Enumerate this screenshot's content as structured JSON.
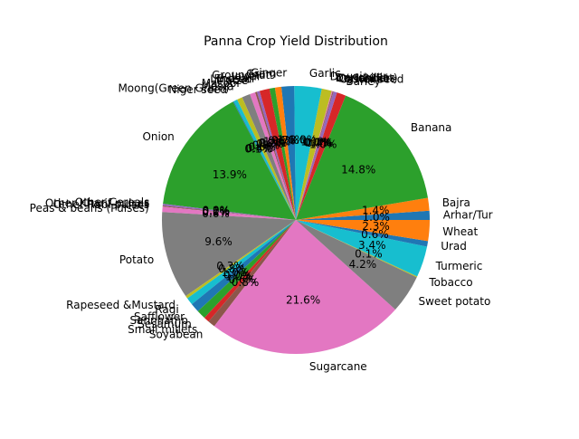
{
  "chart_data": {
    "type": "pie",
    "title": "Panna Crop Yield Distribution",
    "start_angle_deg": 0,
    "direction": "counterclockwise",
    "slices": [
      {
        "label": "Arhar/Tur",
        "value": 1.0,
        "pct": "1.0%",
        "color": "#1f77b4"
      },
      {
        "label": "Bajra",
        "value": 1.4,
        "pct": "1.4%",
        "color": "#ff7f0e"
      },
      {
        "label": "Banana",
        "value": 14.8,
        "pct": "14.8%",
        "color": "#2ca02c"
      },
      {
        "label": "Barley",
        "value": 1.0,
        "pct": "1.0%",
        "color": "#d62728"
      },
      {
        "label": "Castor seed",
        "value": 0.4,
        "pct": "0.4%",
        "color": "#9467bd"
      },
      {
        "label": "Coriander",
        "value": 0.1,
        "pct": "0.1%",
        "color": "#8c564b"
      },
      {
        "label": "Cotton(lint)",
        "value": 0.1,
        "pct": "0.1%",
        "color": "#e377c2"
      },
      {
        "label": "Dry chillies",
        "value": 0.0,
        "pct": "0.0%",
        "color": "#7f7f7f"
      },
      {
        "label": "Dry ginger",
        "value": 1.1,
        "pct": "1.1%",
        "color": "#bcbd22"
      },
      {
        "label": "Garlic",
        "value": 3.0,
        "pct": "3.0%",
        "color": "#17becf"
      },
      {
        "label": "Ginger",
        "value": 1.4,
        "pct": "1.4%",
        "color": "#1f77b4"
      },
      {
        "label": "Gram",
        "value": 0.7,
        "pct": "0.7%",
        "color": "#ff7f0e"
      },
      {
        "label": "Groundnut",
        "value": 0.6,
        "pct": "0.6%",
        "color": "#2ca02c"
      },
      {
        "label": "Jowar",
        "value": 1.1,
        "pct": "1.1%",
        "color": "#d62728"
      },
      {
        "label": "Khesari",
        "value": 0.3,
        "pct": "0.3%",
        "color": "#9467bd"
      },
      {
        "label": "Linseed",
        "value": 0.2,
        "pct": "0.2%",
        "color": "#8c564b"
      },
      {
        "label": "Maize",
        "value": 0.6,
        "pct": "0.6%",
        "color": "#e377c2"
      },
      {
        "label": "Masoor",
        "value": 0.9,
        "pct": "0.9%",
        "color": "#7f7f7f"
      },
      {
        "label": "Mesta",
        "value": 0.6,
        "pct": "0.6%",
        "color": "#bcbd22"
      },
      {
        "label": "Moong(Green Gram)",
        "value": 0.4,
        "pct": "0.4%",
        "color": "#17becf"
      },
      {
        "label": "Niger seed",
        "value": 0.1,
        "pct": "0.1%",
        "color": "#1f77b4"
      },
      {
        "label": "Onion",
        "value": 13.9,
        "pct": "13.9%",
        "color": "#2ca02c"
      },
      {
        "label": "Other Cereals",
        "value": 0.0,
        "pct": "0.0%",
        "color": "#d62728"
      },
      {
        "label": "Other Kharif pulses",
        "value": 0.2,
        "pct": "0.2%",
        "color": "#9467bd"
      },
      {
        "label": "Other Rabi pulses",
        "value": 0.1,
        "pct": "0.1%",
        "color": "#8c564b"
      },
      {
        "label": "Peas & beans (Pulses)",
        "value": 0.6,
        "pct": "0.6%",
        "color": "#e377c2"
      },
      {
        "label": "Potato",
        "value": 9.6,
        "pct": "9.6%",
        "color": "#7f7f7f"
      },
      {
        "label": "Rapeseed &Mustard",
        "value": 0.3,
        "pct": "0.3%",
        "color": "#bcbd22"
      },
      {
        "label": "Ragi",
        "value": 0.8,
        "pct": "0.8%",
        "color": "#17becf"
      },
      {
        "label": "Safflower",
        "value": 1.0,
        "pct": "1.0%",
        "color": "#1f77b4"
      },
      {
        "label": "Sannhamp",
        "value": 0.0,
        "pct": "0.0%",
        "color": "#ff7f0e"
      },
      {
        "label": "Sesamum",
        "value": 1.0,
        "pct": "1.0%",
        "color": "#2ca02c"
      },
      {
        "label": "Small millets",
        "value": 0.6,
        "pct": "0.6%",
        "color": "#d62728"
      },
      {
        "label": "Soyabean",
        "value": 0.8,
        "pct": "0.8%",
        "color": "#8c564b"
      },
      {
        "label": "Sugarcane",
        "value": 21.6,
        "pct": "21.6%",
        "color": "#e377c2"
      },
      {
        "label": "Sweet potato",
        "value": 4.2,
        "pct": "4.2%",
        "color": "#7f7f7f"
      },
      {
        "label": "Tobacco",
        "value": 0.1,
        "pct": "0.1%",
        "color": "#bcbd22"
      },
      {
        "label": "Turmeric",
        "value": 3.4,
        "pct": "3.4%",
        "color": "#17becf"
      },
      {
        "label": "Urad",
        "value": 0.6,
        "pct": "0.6%",
        "color": "#1f77b4"
      },
      {
        "label": "Wheat",
        "value": 2.3,
        "pct": "2.3%",
        "color": "#ff7f0e"
      }
    ]
  }
}
